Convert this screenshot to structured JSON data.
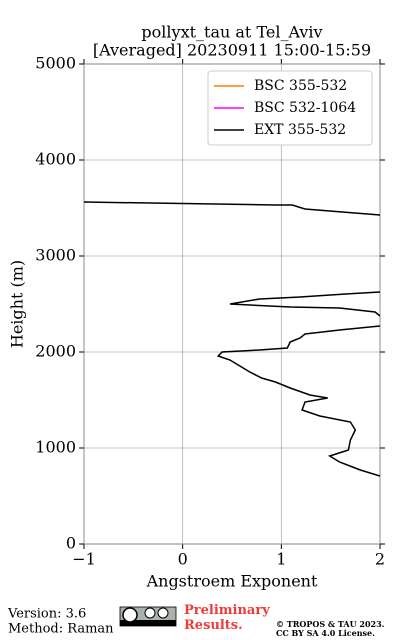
{
  "chart_data": {
    "type": "line",
    "title": "pollyxt_tau at Tel_Aviv",
    "subtitle": "[Averaged] 20230911 15:00-15:59",
    "x_label": "Angstroem Exponent",
    "y_label": "Height (m)",
    "xlim": [
      -1,
      2
    ],
    "ylim": [
      0,
      5000
    ],
    "xticks": [
      {
        "value": -1,
        "label": "−1"
      },
      0,
      1,
      2
    ],
    "yticks": [
      0,
      1000,
      2000,
      3000,
      4000,
      5000
    ],
    "grid": true,
    "legend": "upper right",
    "series": [
      {
        "name": "BSC 355-532",
        "color": "#ff7f0e",
        "x": [],
        "y": []
      },
      {
        "name": "BSC 532-1064",
        "color": "#ff00ff",
        "x": [],
        "y": []
      },
      {
        "name": "EXT 355-532",
        "color": "#000000",
        "x": [
          -1,
          0.94,
          1.11,
          1.24,
          1.49,
          2.0,
          null,
          2.0,
          1.65,
          1.19,
          0.78,
          0.48,
          1.09,
          1.59,
          1.95,
          2.0,
          null,
          2.0,
          1.59,
          1.24,
          1.19,
          1.09,
          1.06,
          0.78,
          0.4,
          0.36,
          0.48,
          0.58,
          0.68,
          0.8,
          0.94,
          1.09,
          1.29,
          1.47,
          1.24,
          1.21,
          1.39,
          1.7,
          1.75,
          1.7,
          1.68,
          1.49,
          1.59,
          1.8,
          2.0
        ],
        "y": [
          3563,
          3531,
          3531,
          3490,
          3469,
          3427,
          null,
          2625,
          2604,
          2573,
          2552,
          2500,
          2469,
          2458,
          2417,
          2375,
          null,
          2271,
          2229,
          2188,
          2146,
          2104,
          2042,
          2021,
          2000,
          1958,
          1917,
          1854,
          1792,
          1729,
          1688,
          1625,
          1552,
          1521,
          1479,
          1396,
          1333,
          1271,
          1188,
          1083,
          979,
          917,
          854,
          771,
          708
        ]
      }
    ]
  },
  "footer": {
    "version": "Version: 3.6",
    "method": "Method: Raman",
    "notice": "Preliminary Results.",
    "copyright": "© TROPOS & TAU 2023.",
    "license": "CC BY SA 4.0 License."
  }
}
